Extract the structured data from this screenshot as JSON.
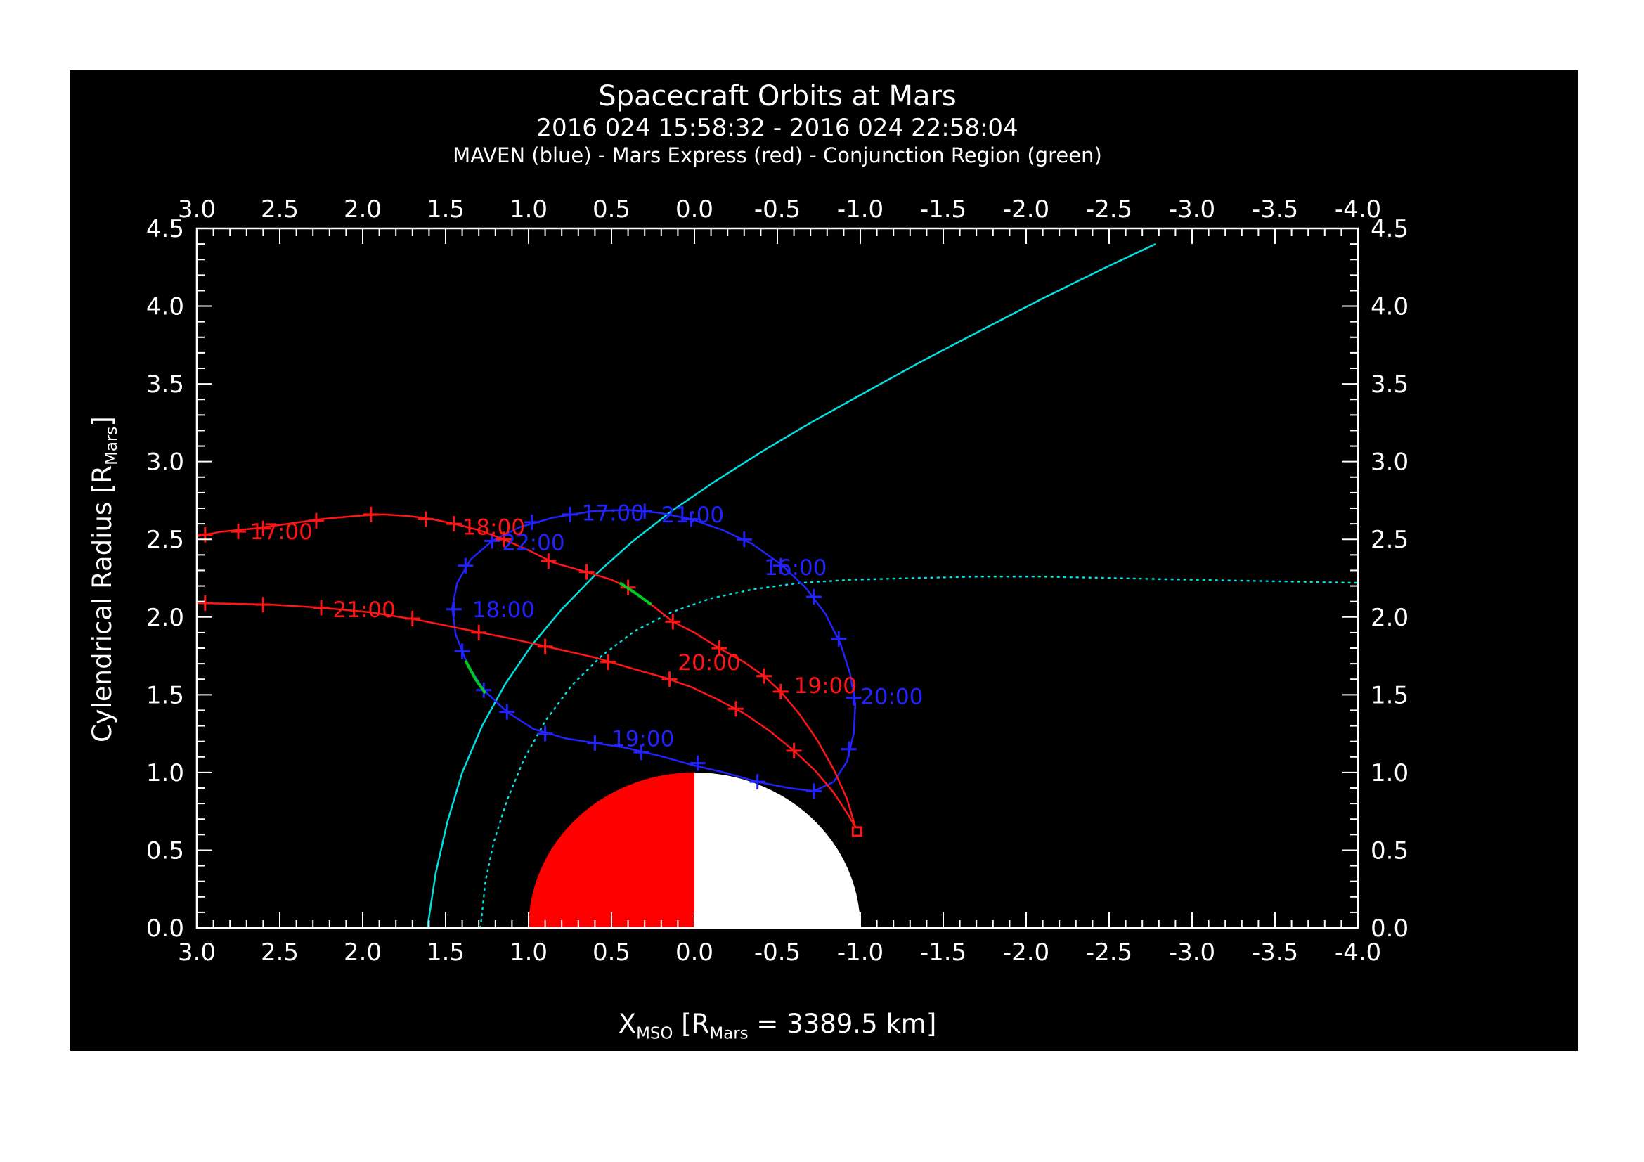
{
  "header": {
    "title": "Spacecraft Orbits at Mars",
    "date_range": "2016 024 15:58:32 - 2016 024 22:58:04",
    "legend": "MAVEN (blue) - Mars Express (red) - Conjunction Region (green)"
  },
  "axis_labels": {
    "y_p1": "Cylendrical Radius [R",
    "y_s1": "Mars",
    "y_p2": "]",
    "x_p1": "X",
    "x_s1": "MSO",
    "x_p2": " [R",
    "x_s2": "Mars",
    "x_p3": " = 3389.5 km]"
  },
  "chart_data": {
    "type": "line",
    "title": "Spacecraft Orbits at Mars",
    "subtitle": "2016 024 15:58:32 - 2016 024 22:58:04",
    "legend_text": "MAVEN (blue) - Mars Express (red) - Conjunction Region (green)",
    "xlabel": "X_MSO [R_Mars = 3389.5 km]",
    "ylabel": "Cylendrical Radius [R_Mars]",
    "x_axis": {
      "range": [
        3.0,
        -4.0
      ],
      "reversed": true,
      "tick_values": [
        3.0,
        2.5,
        2.0,
        1.5,
        1.0,
        0.5,
        0.0,
        -0.5,
        -1.0,
        -1.5,
        -2.0,
        -2.5,
        -3.0,
        -3.5,
        -4.0
      ],
      "tick_labels": [
        "3.0",
        "2.5",
        "2.0",
        "1.5",
        "1.0",
        "0.5",
        "0.0",
        "-0.5",
        "-1.0",
        "-1.5",
        "-2.0",
        "-2.5",
        "-3.0",
        "-3.5",
        "-4.0"
      ],
      "minor_step": 0.1
    },
    "y_axis": {
      "range": [
        0.0,
        4.5
      ],
      "tick_values": [
        0.0,
        0.5,
        1.0,
        1.5,
        2.0,
        2.5,
        3.0,
        3.5,
        4.0,
        4.5
      ],
      "tick_labels": [
        "0.0",
        "0.5",
        "1.0",
        "1.5",
        "2.0",
        "2.5",
        "3.0",
        "3.5",
        "4.0",
        "4.5"
      ],
      "minor_step": 0.1
    },
    "colors": {
      "maven": "#2222ff",
      "mex": "#ff1515",
      "boundary": "#00e0e0",
      "conjunction": "#00cc22",
      "axis": "#ffffff",
      "mars_day": "#ff0000",
      "mars_night": "#ffffff"
    },
    "mars": {
      "center_x": 0.0,
      "center_y": 0.0,
      "radius": 1.0,
      "dayside": "positive-x (red)",
      "nightside": "negative-x (white)"
    },
    "series": [
      {
        "name": "bow-shock",
        "color_key": "boundary",
        "style": "solid",
        "width": 2.5,
        "closed": false,
        "points": [
          [
            1.61,
            0.0
          ],
          [
            1.56,
            0.35
          ],
          [
            1.49,
            0.68
          ],
          [
            1.4,
            1.0
          ],
          [
            1.28,
            1.3
          ],
          [
            1.14,
            1.57
          ],
          [
            0.98,
            1.82
          ],
          [
            0.8,
            2.05
          ],
          [
            0.6,
            2.27
          ],
          [
            0.38,
            2.48
          ],
          [
            0.14,
            2.68
          ],
          [
            -0.12,
            2.87
          ],
          [
            -0.4,
            3.06
          ],
          [
            -0.7,
            3.25
          ],
          [
            -1.02,
            3.44
          ],
          [
            -1.36,
            3.64
          ],
          [
            -1.72,
            3.84
          ],
          [
            -2.1,
            4.05
          ],
          [
            -2.5,
            4.26
          ],
          [
            -2.78,
            4.4
          ]
        ]
      },
      {
        "name": "magnetosphere-boundary",
        "color_key": "boundary",
        "style": "dotted",
        "width": 2.5,
        "closed": false,
        "points": [
          [
            1.29,
            0.0
          ],
          [
            1.26,
            0.3
          ],
          [
            1.21,
            0.55
          ],
          [
            1.13,
            0.82
          ],
          [
            1.03,
            1.08
          ],
          [
            0.9,
            1.33
          ],
          [
            0.74,
            1.56
          ],
          [
            0.56,
            1.75
          ],
          [
            0.36,
            1.91
          ],
          [
            0.14,
            2.03
          ],
          [
            -0.1,
            2.12
          ],
          [
            -0.36,
            2.18
          ],
          [
            -0.64,
            2.22
          ],
          [
            -0.95,
            2.24
          ],
          [
            -1.3,
            2.25
          ],
          [
            -1.7,
            2.26
          ],
          [
            -2.1,
            2.26
          ],
          [
            -2.55,
            2.25
          ],
          [
            -3.0,
            2.24
          ],
          [
            -3.5,
            2.23
          ],
          [
            -4.0,
            2.22
          ]
        ]
      },
      {
        "name": "maven-orbit",
        "color_key": "maven",
        "style": "solid",
        "width": 2.5,
        "closed": true,
        "points": [
          [
            0.4,
            2.69
          ],
          [
            0.62,
            2.68
          ],
          [
            0.85,
            2.64
          ],
          [
            1.05,
            2.58
          ],
          [
            1.22,
            2.49
          ],
          [
            1.35,
            2.37
          ],
          [
            1.43,
            2.22
          ],
          [
            1.46,
            2.06
          ],
          [
            1.44,
            1.89
          ],
          [
            1.37,
            1.7
          ],
          [
            1.27,
            1.53
          ],
          [
            1.13,
            1.39
          ],
          [
            0.97,
            1.28
          ],
          [
            0.78,
            1.22
          ],
          [
            0.6,
            1.19
          ],
          [
            0.42,
            1.16
          ],
          [
            0.22,
            1.11
          ],
          [
            0.02,
            1.05
          ],
          [
            -0.18,
            1.0
          ],
          [
            -0.38,
            0.94
          ],
          [
            -0.57,
            0.9
          ],
          [
            -0.72,
            0.88
          ],
          [
            -0.84,
            0.94
          ],
          [
            -0.92,
            1.07
          ],
          [
            -0.96,
            1.25
          ],
          [
            -0.97,
            1.44
          ],
          [
            -0.94,
            1.63
          ],
          [
            -0.88,
            1.83
          ],
          [
            -0.79,
            2.02
          ],
          [
            -0.67,
            2.19
          ],
          [
            -0.52,
            2.34
          ],
          [
            -0.35,
            2.47
          ],
          [
            -0.17,
            2.56
          ],
          [
            0.02,
            2.63
          ],
          [
            0.21,
            2.67
          ]
        ],
        "markers": [
          [
            0.75,
            2.66
          ],
          [
            0.3,
            2.68
          ],
          [
            0.02,
            2.63
          ],
          [
            -0.3,
            2.5
          ],
          [
            -0.52,
            2.33
          ],
          [
            -0.72,
            2.13
          ],
          [
            -0.87,
            1.86
          ],
          [
            -0.96,
            1.48
          ],
          [
            -0.93,
            1.15
          ],
          [
            -0.72,
            0.88
          ],
          [
            -0.38,
            0.94
          ],
          [
            -0.02,
            1.06
          ],
          [
            0.32,
            1.13
          ],
          [
            0.6,
            1.19
          ],
          [
            0.9,
            1.25
          ],
          [
            1.13,
            1.39
          ],
          [
            1.27,
            1.53
          ],
          [
            1.4,
            1.78
          ],
          [
            1.45,
            2.05
          ],
          [
            1.38,
            2.33
          ],
          [
            1.22,
            2.49
          ],
          [
            0.98,
            2.61
          ]
        ]
      },
      {
        "name": "mex-inbound",
        "color_key": "mex",
        "style": "solid",
        "width": 2.5,
        "closed": false,
        "points": [
          [
            3.0,
            2.52
          ],
          [
            2.85,
            2.55
          ],
          [
            2.65,
            2.57
          ],
          [
            2.45,
            2.6
          ],
          [
            2.25,
            2.63
          ],
          [
            2.05,
            2.65
          ],
          [
            1.88,
            2.66
          ],
          [
            1.72,
            2.65
          ],
          [
            1.58,
            2.63
          ],
          [
            1.45,
            2.6
          ],
          [
            1.3,
            2.56
          ],
          [
            1.15,
            2.5
          ],
          [
            1.0,
            2.43
          ],
          [
            0.85,
            2.35
          ],
          [
            0.65,
            2.29
          ],
          [
            0.5,
            2.24
          ],
          [
            0.4,
            2.19
          ],
          [
            0.26,
            2.08
          ],
          [
            0.13,
            1.97
          ],
          [
            0.0,
            1.9
          ],
          [
            -0.15,
            1.8
          ],
          [
            -0.3,
            1.71
          ],
          [
            -0.42,
            1.62
          ],
          [
            -0.52,
            1.52
          ],
          [
            -0.63,
            1.38
          ],
          [
            -0.74,
            1.21
          ],
          [
            -0.84,
            1.02
          ],
          [
            -0.92,
            0.83
          ],
          [
            -0.97,
            0.65
          ]
        ],
        "markers": [
          [
            2.95,
            2.53
          ],
          [
            2.75,
            2.55
          ],
          [
            2.6,
            2.57
          ],
          [
            2.28,
            2.62
          ],
          [
            1.95,
            2.66
          ],
          [
            1.62,
            2.63
          ],
          [
            1.45,
            2.6
          ],
          [
            1.15,
            2.5
          ],
          [
            0.88,
            2.36
          ],
          [
            0.65,
            2.29
          ],
          [
            0.4,
            2.19
          ],
          [
            0.13,
            1.97
          ],
          [
            -0.15,
            1.8
          ],
          [
            -0.42,
            1.62
          ],
          [
            -0.52,
            1.52
          ]
        ]
      },
      {
        "name": "mex-outbound",
        "color_key": "mex",
        "style": "solid",
        "width": 2.5,
        "closed": false,
        "points": [
          [
            -0.97,
            0.65
          ],
          [
            -0.92,
            0.74
          ],
          [
            -0.84,
            0.87
          ],
          [
            -0.73,
            1.01
          ],
          [
            -0.6,
            1.14
          ],
          [
            -0.45,
            1.27
          ],
          [
            -0.3,
            1.38
          ],
          [
            -0.14,
            1.47
          ],
          [
            0.02,
            1.55
          ],
          [
            0.18,
            1.61
          ],
          [
            0.38,
            1.67
          ],
          [
            0.6,
            1.74
          ],
          [
            0.85,
            1.8
          ],
          [
            1.1,
            1.86
          ],
          [
            1.38,
            1.92
          ],
          [
            1.66,
            1.98
          ],
          [
            1.95,
            2.03
          ],
          [
            2.25,
            2.06
          ],
          [
            2.55,
            2.08
          ],
          [
            3.0,
            2.09
          ]
        ],
        "markers": [
          [
            -0.6,
            1.14
          ],
          [
            -0.25,
            1.41
          ],
          [
            0.15,
            1.6
          ],
          [
            0.52,
            1.71
          ],
          [
            0.9,
            1.81
          ],
          [
            1.3,
            1.9
          ],
          [
            1.7,
            1.99
          ],
          [
            2.25,
            2.06
          ],
          [
            2.6,
            2.08
          ],
          [
            2.95,
            2.09
          ]
        ]
      },
      {
        "name": "conjunction-region-mex",
        "color_key": "conjunction",
        "style": "solid",
        "width": 4,
        "closed": false,
        "points": [
          [
            0.45,
            2.22
          ],
          [
            0.35,
            2.15
          ],
          [
            0.26,
            2.08
          ]
        ]
      },
      {
        "name": "conjunction-region-maven",
        "color_key": "conjunction",
        "style": "solid",
        "width": 4,
        "closed": false,
        "points": [
          [
            1.38,
            1.72
          ],
          [
            1.32,
            1.6
          ],
          [
            1.26,
            1.51
          ]
        ]
      }
    ],
    "periapsis_marker": {
      "x": -0.98,
      "y": 0.62,
      "color_key": "mex"
    },
    "annotations": [
      {
        "text": "17:00",
        "x": 0.68,
        "y": 2.62,
        "color_key": "maven"
      },
      {
        "text": "21:00",
        "x": 0.2,
        "y": 2.61,
        "color_key": "maven"
      },
      {
        "text": "22:00",
        "x": 1.16,
        "y": 2.43,
        "color_key": "maven"
      },
      {
        "text": "16:00",
        "x": -0.42,
        "y": 2.27,
        "color_key": "maven"
      },
      {
        "text": "18:00",
        "x": 1.34,
        "y": 2.0,
        "color_key": "maven"
      },
      {
        "text": "19:00",
        "x": 0.5,
        "y": 1.17,
        "color_key": "maven"
      },
      {
        "text": "20:00",
        "x": -1.0,
        "y": 1.44,
        "color_key": "maven"
      },
      {
        "text": "17:00",
        "x": 2.68,
        "y": 2.5,
        "color_key": "mex"
      },
      {
        "text": "18:00",
        "x": 1.4,
        "y": 2.53,
        "color_key": "mex"
      },
      {
        "text": "21:00",
        "x": 2.18,
        "y": 2.0,
        "color_key": "mex"
      },
      {
        "text": "20:00",
        "x": 0.1,
        "y": 1.66,
        "color_key": "mex"
      },
      {
        "text": "19:00",
        "x": -0.6,
        "y": 1.51,
        "color_key": "mex"
      }
    ]
  }
}
